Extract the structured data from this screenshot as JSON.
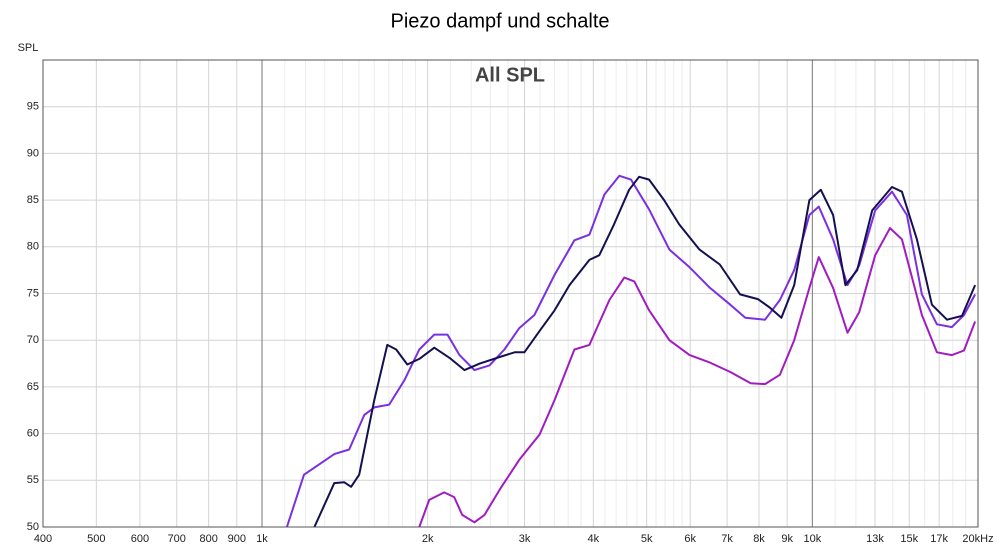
{
  "chart_data": {
    "type": "line",
    "title": "Piezo dampf und schalte",
    "ylabel": "SPL",
    "annotation": "All SPL",
    "xscale": "log",
    "xlim": [
      400,
      20000
    ],
    "ylim": [
      50,
      100
    ],
    "xticks": [
      400,
      500,
      600,
      700,
      800,
      900,
      {
        "value": 1000,
        "label": "1k"
      },
      {
        "value": 2000,
        "label": "2k"
      },
      {
        "value": 3000,
        "label": "3k"
      },
      {
        "value": 4000,
        "label": "4k"
      },
      {
        "value": 5000,
        "label": "5k"
      },
      {
        "value": 6000,
        "label": "6k"
      },
      {
        "value": 7000,
        "label": "7k"
      },
      {
        "value": 8000,
        "label": "8k"
      },
      {
        "value": 9000,
        "label": "9k"
      },
      {
        "value": 10000,
        "label": "10k"
      },
      {
        "value": 13000,
        "label": "13k"
      },
      {
        "value": 15000,
        "label": "15k"
      },
      {
        "value": 17000,
        "label": "17k"
      },
      {
        "value": 20000,
        "label": "20kHz"
      }
    ],
    "xminor": [
      1100,
      1200,
      1300,
      1400,
      1500,
      1600,
      1700,
      1800,
      1900,
      2200,
      2400,
      2600,
      2800,
      3200,
      3400,
      3600,
      3800,
      4200,
      4400,
      4600,
      4800,
      5200,
      5400,
      5600,
      5800,
      11000,
      12000,
      14000,
      16000,
      18000,
      19000
    ],
    "yticks": [
      50,
      55,
      60,
      65,
      70,
      75,
      80,
      85,
      90,
      95
    ],
    "grid": true,
    "series": [
      {
        "color": "#7a2fe0",
        "x": [
          1110,
          1192,
          1270,
          1353,
          1440,
          1534,
          1600,
          1703,
          1814,
          1931,
          2056,
          2173,
          2285,
          2432,
          2590,
          2757,
          2935,
          3126,
          3401,
          3696,
          3934,
          4189,
          4460,
          4683,
          5052,
          5498,
          5985,
          6516,
          7094,
          7553,
          8203,
          8730,
          9270,
          9876,
          10273,
          10908,
          11584,
          12168,
          13011,
          13958,
          14855,
          15817,
          16843,
          17934,
          18859,
          19762
        ],
        "values": [
          50,
          55.6,
          56.7,
          57.8,
          58.3,
          62,
          62.8,
          63.1,
          65.7,
          69,
          70.6,
          70.6,
          68.4,
          66.8,
          67.3,
          69,
          71.3,
          72.7,
          77,
          80.7,
          81.3,
          85.6,
          87.6,
          87.2,
          84,
          79.7,
          77.8,
          75.6,
          73.8,
          72.4,
          72.2,
          74.3,
          77.5,
          83.4,
          84.3,
          80.8,
          75.9,
          78,
          83.9,
          85.9,
          83.4,
          74.9,
          71.7,
          71.4,
          72.7,
          74.9
        ]
      },
      {
        "color": "#a01cc0",
        "x": [
          1931,
          2013,
          2143,
          2235,
          2311,
          2432,
          2537,
          2704,
          2935,
          3194,
          3401,
          3696,
          3934,
          4279,
          4553,
          4748,
          5052,
          5498,
          5985,
          6516,
          7094,
          7723,
          8203,
          8730,
          9270,
          9876,
          10273,
          10908,
          11584,
          12168,
          13011,
          13842,
          14548,
          15817,
          16843,
          17934,
          18859,
          19762
        ],
        "values": [
          50,
          52.9,
          53.7,
          53.2,
          51.3,
          50.5,
          51.3,
          54,
          57.2,
          59.9,
          63.6,
          69,
          69.5,
          74.3,
          76.7,
          76.3,
          73.2,
          70,
          68.4,
          67.6,
          66.6,
          65.4,
          65.3,
          66.3,
          70,
          75.6,
          78.9,
          75.6,
          70.8,
          73,
          79.1,
          82,
          80.8,
          72.7,
          68.7,
          68.4,
          68.9,
          72
        ]
      },
      {
        "color": "#141050",
        "x": [
          1245,
          1353,
          1410,
          1452,
          1502,
          1600,
          1689,
          1753,
          1837,
          1931,
          2056,
          2192,
          2333,
          2486,
          2704,
          2877,
          2998,
          3194,
          3401,
          3621,
          3934,
          4101,
          4361,
          4646,
          4844,
          5052,
          5379,
          5728,
          6236,
          6790,
          7393,
          7964,
          8366,
          8785,
          9270,
          9876,
          10360,
          10908,
          11486,
          12067,
          12847,
          13958,
          14548,
          15491,
          16495,
          17564,
          18703,
          19762
        ],
        "values": [
          50,
          54.7,
          54.8,
          54.3,
          55.6,
          63.6,
          69.5,
          69,
          67.4,
          68,
          69.2,
          68.1,
          66.8,
          67.5,
          68.2,
          68.7,
          68.7,
          71,
          73.2,
          75.9,
          78.6,
          79.1,
          82.4,
          86.1,
          87.5,
          87.2,
          85,
          82.4,
          79.7,
          78.1,
          74.9,
          74.4,
          73.5,
          72.4,
          75.9,
          85,
          86.1,
          83.4,
          75.9,
          77.5,
          83.9,
          86.4,
          85.9,
          80.8,
          73.8,
          72.2,
          72.6,
          75.9
        ]
      }
    ]
  }
}
